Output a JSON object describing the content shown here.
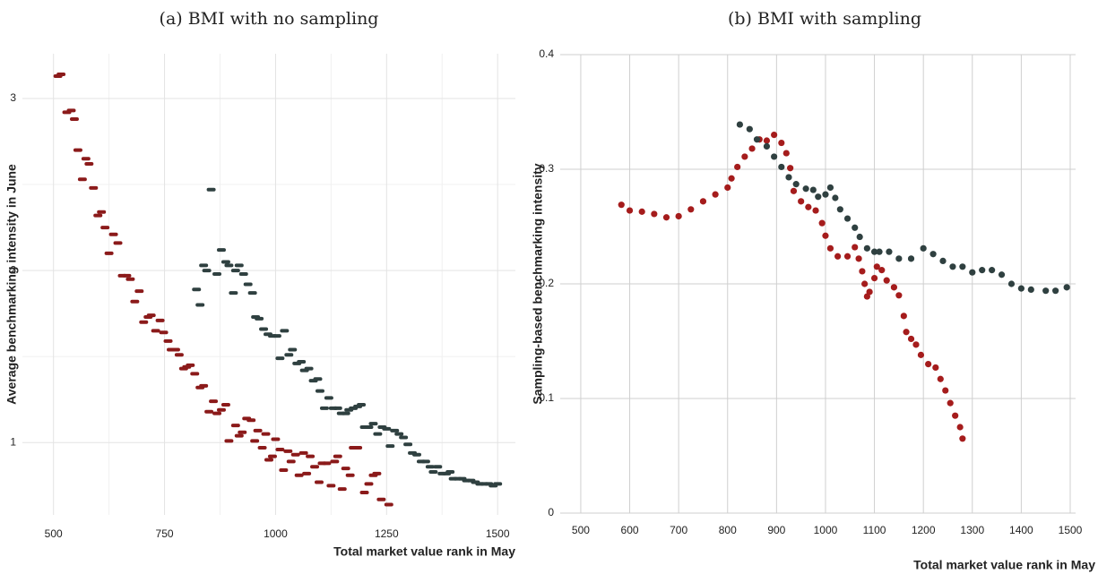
{
  "chart_data": [
    {
      "type": "scatter",
      "title": "(a) BMI with no sampling",
      "x_label": "Total market value rank in May",
      "y_label": "Average benchmarking intensity in June",
      "marker": "dash",
      "grid": true,
      "xlim": [
        430,
        1540
      ],
      "ylim": [
        0.58,
        3.26
      ],
      "xticks": [
        500,
        750,
        1000,
        1250,
        1500
      ],
      "yticks": [
        1,
        2,
        3
      ],
      "x_minor_grid": [
        625,
        875,
        1125,
        1375
      ],
      "y_minor_grid": [
        1.5,
        2.5
      ],
      "series": [
        {
          "color": "#8b1a1a",
          "x": [
            510,
            517,
            530,
            540,
            547,
            555,
            565,
            573,
            580,
            590,
            600,
            608,
            616,
            625,
            635,
            645,
            655,
            665,
            673,
            683,
            693,
            703,
            713,
            720,
            730,
            740,
            748,
            758,
            765,
            775,
            783,
            793,
            800,
            808,
            818,
            830,
            838,
            850,
            860,
            868,
            878,
            888,
            895,
            910,
            918,
            925,
            935,
            945,
            953,
            960,
            970,
            978,
            985,
            993,
            1000,
            1010,
            1018,
            1028,
            1035,
            1045,
            1053,
            1063,
            1070,
            1078,
            1088,
            1098,
            1105,
            1115,
            1125,
            1133,
            1140,
            1150,
            1158,
            1168,
            1175,
            1185,
            1200,
            1210,
            1220,
            1228,
            1238,
            1255
          ],
          "values": [
            3.13,
            3.14,
            2.92,
            2.93,
            2.88,
            2.7,
            2.53,
            2.65,
            2.62,
            2.48,
            2.32,
            2.34,
            2.25,
            2.1,
            2.21,
            2.16,
            1.97,
            1.97,
            1.95,
            1.82,
            1.88,
            1.7,
            1.73,
            1.74,
            1.65,
            1.71,
            1.64,
            1.59,
            1.54,
            1.54,
            1.51,
            1.43,
            1.44,
            1.45,
            1.4,
            1.32,
            1.33,
            1.18,
            1.24,
            1.17,
            1.19,
            1.22,
            1.01,
            1.1,
            1.04,
            1.06,
            1.14,
            1.13,
            1.01,
            1.07,
            0.97,
            1.05,
            0.9,
            0.92,
            1.02,
            0.96,
            0.84,
            0.95,
            0.89,
            0.93,
            0.81,
            0.94,
            0.82,
            0.92,
            0.86,
            0.77,
            0.88,
            0.88,
            0.75,
            0.89,
            0.92,
            0.73,
            0.85,
            0.81,
            0.97,
            0.97,
            0.71,
            0.76,
            0.81,
            0.82,
            0.67,
            0.64
          ]
        },
        {
          "color": "#2f4040",
          "x": [
            822,
            830,
            838,
            845,
            855,
            868,
            878,
            888,
            895,
            905,
            910,
            918,
            928,
            938,
            948,
            955,
            963,
            973,
            983,
            993,
            1003,
            1010,
            1020,
            1030,
            1038,
            1048,
            1058,
            1065,
            1075,
            1085,
            1095,
            1100,
            1110,
            1120,
            1130,
            1140,
            1148,
            1158,
            1165,
            1175,
            1185,
            1193,
            1200,
            1210,
            1220,
            1230,
            1240,
            1250,
            1258,
            1268,
            1278,
            1288,
            1298,
            1308,
            1318,
            1328,
            1338,
            1348,
            1355,
            1365,
            1375,
            1385,
            1393,
            1400,
            1410,
            1420,
            1430,
            1440,
            1450,
            1460,
            1470,
            1480,
            1490,
            1500
          ],
          "values": [
            1.89,
            1.8,
            2.03,
            2.0,
            2.47,
            1.98,
            2.12,
            2.05,
            2.03,
            1.87,
            2.0,
            2.03,
            1.98,
            1.92,
            1.87,
            1.73,
            1.72,
            1.66,
            1.63,
            1.62,
            1.62,
            1.49,
            1.65,
            1.51,
            1.54,
            1.46,
            1.47,
            1.42,
            1.43,
            1.36,
            1.37,
            1.3,
            1.2,
            1.26,
            1.2,
            1.2,
            1.17,
            1.17,
            1.19,
            1.2,
            1.21,
            1.22,
            1.09,
            1.09,
            1.11,
            1.05,
            1.09,
            1.08,
            0.98,
            1.07,
            1.05,
            1.03,
            0.99,
            0.94,
            0.93,
            0.89,
            0.89,
            0.86,
            0.83,
            0.86,
            0.82,
            0.82,
            0.83,
            0.79,
            0.79,
            0.79,
            0.78,
            0.78,
            0.77,
            0.76,
            0.76,
            0.76,
            0.75,
            0.76
          ]
        }
      ]
    },
    {
      "type": "scatter",
      "title": "(b) BMI with sampling",
      "x_label": "Total market value rank in May",
      "y_label": "Sampling-based benchmarking intensity",
      "marker": "circle",
      "grid": true,
      "xlim": [
        458,
        1511
      ],
      "ylim": [
        0,
        0.4
      ],
      "xticks": [
        500,
        600,
        700,
        800,
        900,
        1000,
        1100,
        1200,
        1300,
        1400,
        1500
      ],
      "yticks": [
        0,
        0.1,
        0.2,
        0.3,
        0.4
      ],
      "series": [
        {
          "color": "#a51c1c",
          "x": [
            583,
            600,
            625,
            650,
            675,
            700,
            725,
            750,
            775,
            800,
            808,
            820,
            835,
            850,
            865,
            880,
            895,
            910,
            920,
            928,
            935,
            950,
            965,
            980,
            993,
            1000,
            1010,
            1025,
            1045,
            1060,
            1068,
            1075,
            1080,
            1085,
            1090,
            1100,
            1105,
            1115,
            1125,
            1140,
            1150,
            1160,
            1165,
            1175,
            1185,
            1195,
            1210,
            1225,
            1235,
            1245,
            1255,
            1265,
            1275,
            1280
          ],
          "values": [
            0.269,
            0.264,
            0.263,
            0.261,
            0.258,
            0.259,
            0.265,
            0.272,
            0.278,
            0.284,
            0.292,
            0.302,
            0.311,
            0.318,
            0.326,
            0.325,
            0.33,
            0.323,
            0.314,
            0.301,
            0.281,
            0.272,
            0.267,
            0.264,
            0.253,
            0.242,
            0.231,
            0.224,
            0.224,
            0.232,
            0.222,
            0.211,
            0.2,
            0.189,
            0.193,
            0.205,
            0.215,
            0.212,
            0.203,
            0.197,
            0.19,
            0.172,
            0.158,
            0.152,
            0.147,
            0.138,
            0.13,
            0.127,
            0.117,
            0.107,
            0.096,
            0.085,
            0.075,
            0.065
          ]
        },
        {
          "color": "#2f4040",
          "x": [
            825,
            845,
            860,
            880,
            895,
            910,
            925,
            940,
            960,
            975,
            985,
            1000,
            1010,
            1020,
            1030,
            1045,
            1060,
            1070,
            1085,
            1100,
            1110,
            1130,
            1150,
            1175,
            1200,
            1220,
            1240,
            1260,
            1280,
            1300,
            1320,
            1340,
            1360,
            1380,
            1400,
            1420,
            1450,
            1470,
            1493
          ],
          "values": [
            0.339,
            0.335,
            0.326,
            0.32,
            0.311,
            0.302,
            0.293,
            0.287,
            0.283,
            0.282,
            0.276,
            0.278,
            0.284,
            0.275,
            0.265,
            0.257,
            0.249,
            0.241,
            0.231,
            0.228,
            0.228,
            0.228,
            0.222,
            0.222,
            0.231,
            0.226,
            0.22,
            0.215,
            0.215,
            0.21,
            0.212,
            0.212,
            0.208,
            0.2,
            0.196,
            0.195,
            0.194,
            0.194,
            0.197
          ]
        }
      ]
    }
  ]
}
